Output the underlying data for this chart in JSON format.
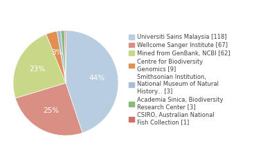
{
  "values": [
    118,
    67,
    62,
    9,
    3,
    3,
    1
  ],
  "colors": [
    "#b8cde0",
    "#d98f84",
    "#c8d888",
    "#e09050",
    "#a8bcd4",
    "#8cb87a",
    "#cc7068"
  ],
  "pct_labels": [
    "44%",
    "25%",
    "23%",
    "3%",
    "",
    "",
    ""
  ],
  "legend_labels": [
    "Universiti Sains Malaysia [118]",
    "Wellcome Sanger Institute [67]",
    "Mined from GenBank, NCBI [62]",
    "Centre for Biodiversity\nGenomics [9]",
    "Smithsonian Institution,\nNational Museum of Natural\nHistory... [3]",
    "Academia Sinica, Biodiversity\nResearch Center [3]",
    "CSIRO, Australian National\nFish Collection [1]"
  ],
  "background_color": "#ffffff",
  "text_color": "#404040",
  "pie_fontsize": 7.5,
  "legend_fontsize": 6.0
}
